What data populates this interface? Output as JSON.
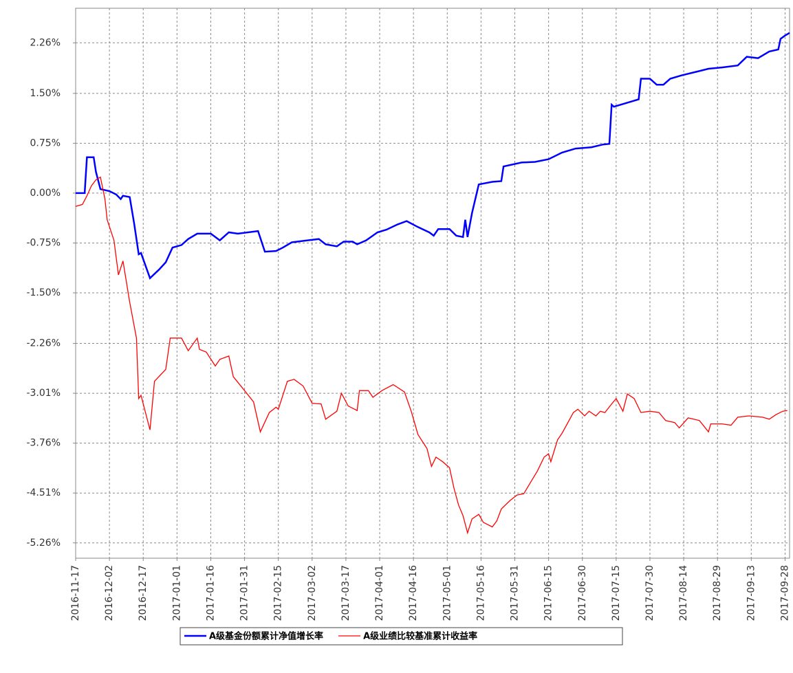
{
  "chart_data": {
    "type": "line",
    "xlim": [
      "2016-11-17",
      "2017-09-30"
    ],
    "xticks": [
      "2016-11-17",
      "2016-12-02",
      "2016-12-17",
      "2017-01-01",
      "2017-01-16",
      "2017-01-31",
      "2017-02-15",
      "2017-03-02",
      "2017-03-17",
      "2017-04-01",
      "2017-04-16",
      "2017-05-01",
      "2017-05-16",
      "2017-05-31",
      "2017-06-15",
      "2017-06-30",
      "2017-07-15",
      "2017-07-30",
      "2017-08-14",
      "2017-08-29",
      "2017-09-13",
      "2017-09-28"
    ],
    "ylim": [
      -5.49,
      2.78
    ],
    "yticks": [
      {
        "value": 2.26,
        "label": "2.26%"
      },
      {
        "value": 1.5,
        "label": "1.50%"
      },
      {
        "value": 0.75,
        "label": "0.75%"
      },
      {
        "value": 0,
        "label": "0.00%"
      },
      {
        "value": -0.75,
        "label": "-0.75%"
      },
      {
        "value": -1.5,
        "label": "-1.50%"
      },
      {
        "value": -2.26,
        "label": "-2.26%"
      },
      {
        "value": -3.01,
        "label": "-3.01%"
      },
      {
        "value": -3.76,
        "label": "-3.76%"
      },
      {
        "value": -4.51,
        "label": "-4.51%"
      },
      {
        "value": -5.26,
        "label": "-5.26%"
      }
    ],
    "grid": true,
    "series": [
      {
        "name": "A级基金份额累计净值增长率",
        "color": "#0000ff",
        "x": [
          "2016-11-17",
          "2016-11-21",
          "2016-11-22",
          "2016-11-25",
          "2016-11-26",
          "2016-11-28",
          "2016-12-02",
          "2016-12-05",
          "2016-12-07",
          "2016-12-08",
          "2016-12-11",
          "2016-12-13",
          "2016-12-15",
          "2016-12-16",
          "2016-12-20",
          "2016-12-24",
          "2016-12-27",
          "2016-12-30",
          "2017-01-03",
          "2017-01-06",
          "2017-01-10",
          "2017-01-16",
          "2017-01-20",
          "2017-01-24",
          "2017-01-28",
          "2017-02-06",
          "2017-02-09",
          "2017-02-14",
          "2017-02-17",
          "2017-02-21",
          "2017-02-28",
          "2017-03-05",
          "2017-03-08",
          "2017-03-13",
          "2017-03-16",
          "2017-03-20",
          "2017-03-22",
          "2017-03-26",
          "2017-03-31",
          "2017-04-04",
          "2017-04-09",
          "2017-04-13",
          "2017-04-18",
          "2017-04-23",
          "2017-04-25",
          "2017-04-27",
          "2017-05-02",
          "2017-05-05",
          "2017-05-08",
          "2017-05-09",
          "2017-05-10",
          "2017-05-12",
          "2017-05-15",
          "2017-05-21",
          "2017-05-25",
          "2017-05-26",
          "2017-06-03",
          "2017-06-09",
          "2017-06-15",
          "2017-06-21",
          "2017-06-27",
          "2017-07-04",
          "2017-07-09",
          "2017-07-12",
          "2017-07-13",
          "2017-07-14",
          "2017-07-22",
          "2017-07-25",
          "2017-07-26",
          "2017-07-30",
          "2017-08-02",
          "2017-08-05",
          "2017-08-08",
          "2017-08-13",
          "2017-08-19",
          "2017-08-25",
          "2017-08-31",
          "2017-09-07",
          "2017-09-11",
          "2017-09-16",
          "2017-09-21",
          "2017-09-25",
          "2017-09-26",
          "2017-09-28",
          "2017-09-30"
        ],
        "values": [
          0,
          0,
          0.54,
          0.54,
          0.32,
          0.06,
          0.03,
          -0.02,
          -0.09,
          -0.04,
          -0.06,
          -0.46,
          -0.92,
          -0.9,
          -1.28,
          -1.15,
          -1.04,
          -0.82,
          -0.78,
          -0.69,
          -0.61,
          -0.61,
          -0.71,
          -0.59,
          -0.61,
          -0.57,
          -0.88,
          -0.87,
          -0.82,
          -0.74,
          -0.71,
          -0.69,
          -0.77,
          -0.8,
          -0.73,
          -0.73,
          -0.77,
          -0.71,
          -0.59,
          -0.55,
          -0.47,
          -0.42,
          -0.51,
          -0.59,
          -0.64,
          -0.54,
          -0.54,
          -0.64,
          -0.66,
          -0.4,
          -0.66,
          -0.3,
          0.13,
          0.17,
          0.18,
          0.4,
          0.46,
          0.47,
          0.51,
          0.61,
          0.67,
          0.69,
          0.73,
          0.74,
          1.33,
          1.3,
          1.38,
          1.41,
          1.72,
          1.72,
          1.63,
          1.63,
          1.72,
          1.77,
          1.82,
          1.87,
          1.89,
          1.92,
          2.05,
          2.03,
          2.13,
          2.16,
          2.32,
          2.37,
          2.41
        ]
      },
      {
        "name": "A级业绩比较基准累计收益率",
        "color": "#ff0000",
        "x": [
          "2016-11-17",
          "2016-11-20",
          "2016-11-22",
          "2016-11-24",
          "2016-11-26",
          "2016-11-28",
          "2016-11-30",
          "2016-12-01",
          "2016-12-04",
          "2016-12-06",
          "2016-12-08",
          "2016-12-11",
          "2016-12-14",
          "2016-12-15",
          "2016-12-16",
          "2016-12-20",
          "2016-12-22",
          "2016-12-27",
          "2016-12-29",
          "2017-01-03",
          "2017-01-06",
          "2017-01-10",
          "2017-01-11",
          "2017-01-14",
          "2017-01-18",
          "2017-01-20",
          "2017-01-24",
          "2017-01-26",
          "2017-01-31",
          "2017-02-04",
          "2017-02-07",
          "2017-02-11",
          "2017-02-14",
          "2017-02-15",
          "2017-02-19",
          "2017-02-22",
          "2017-02-26",
          "2017-03-02",
          "2017-03-06",
          "2017-03-08",
          "2017-03-13",
          "2017-03-15",
          "2017-03-18",
          "2017-03-22",
          "2017-03-23",
          "2017-03-27",
          "2017-03-29",
          "2017-04-02",
          "2017-04-07",
          "2017-04-12",
          "2017-04-15",
          "2017-04-18",
          "2017-04-22",
          "2017-04-24",
          "2017-04-26",
          "2017-04-29",
          "2017-05-02",
          "2017-05-04",
          "2017-05-06",
          "2017-05-08",
          "2017-05-10",
          "2017-05-12",
          "2017-05-15",
          "2017-05-17",
          "2017-05-21",
          "2017-05-23",
          "2017-05-25",
          "2017-05-29",
          "2017-06-01",
          "2017-06-04",
          "2017-06-07",
          "2017-06-10",
          "2017-06-13",
          "2017-06-15",
          "2017-06-16",
          "2017-06-19",
          "2017-06-21",
          "2017-06-26",
          "2017-06-28",
          "2017-07-01",
          "2017-07-03",
          "2017-07-06",
          "2017-07-08",
          "2017-07-10",
          "2017-07-13",
          "2017-07-15",
          "2017-07-18",
          "2017-07-20",
          "2017-07-23",
          "2017-07-26",
          "2017-07-30",
          "2017-08-03",
          "2017-08-06",
          "2017-08-10",
          "2017-08-12",
          "2017-08-16",
          "2017-08-21",
          "2017-08-25",
          "2017-08-26",
          "2017-08-31",
          "2017-09-04",
          "2017-09-07",
          "2017-09-12",
          "2017-09-18",
          "2017-09-21",
          "2017-09-24",
          "2017-09-27",
          "2017-09-29"
        ],
        "values": [
          -0.2,
          -0.17,
          -0.04,
          0.11,
          0.2,
          0.24,
          -0.09,
          -0.4,
          -0.71,
          -1.23,
          -1.02,
          -1.64,
          -2.18,
          -3.09,
          -3.04,
          -3.56,
          -2.83,
          -2.65,
          -2.18,
          -2.18,
          -2.37,
          -2.18,
          -2.35,
          -2.39,
          -2.6,
          -2.5,
          -2.45,
          -2.76,
          -2.97,
          -3.14,
          -3.59,
          -3.3,
          -3.22,
          -3.25,
          -2.83,
          -2.8,
          -2.9,
          -3.16,
          -3.17,
          -3.4,
          -3.28,
          -3.01,
          -3.2,
          -3.27,
          -2.97,
          -2.97,
          -3.07,
          -2.97,
          -2.88,
          -2.99,
          -3.28,
          -3.63,
          -3.84,
          -4.11,
          -3.97,
          -4.04,
          -4.13,
          -4.44,
          -4.69,
          -4.85,
          -5.11,
          -4.9,
          -4.83,
          -4.95,
          -5.02,
          -4.93,
          -4.75,
          -4.62,
          -4.54,
          -4.52,
          -4.35,
          -4.18,
          -3.97,
          -3.92,
          -4.04,
          -3.71,
          -3.61,
          -3.3,
          -3.25,
          -3.35,
          -3.28,
          -3.35,
          -3.28,
          -3.3,
          -3.17,
          -3.09,
          -3.28,
          -3.02,
          -3.09,
          -3.3,
          -3.28,
          -3.3,
          -3.42,
          -3.45,
          -3.53,
          -3.38,
          -3.42,
          -3.59,
          -3.47,
          -3.47,
          -3.49,
          -3.37,
          -3.35,
          -3.37,
          -3.4,
          -3.33,
          -3.28,
          -3.27
        ]
      }
    ]
  }
}
